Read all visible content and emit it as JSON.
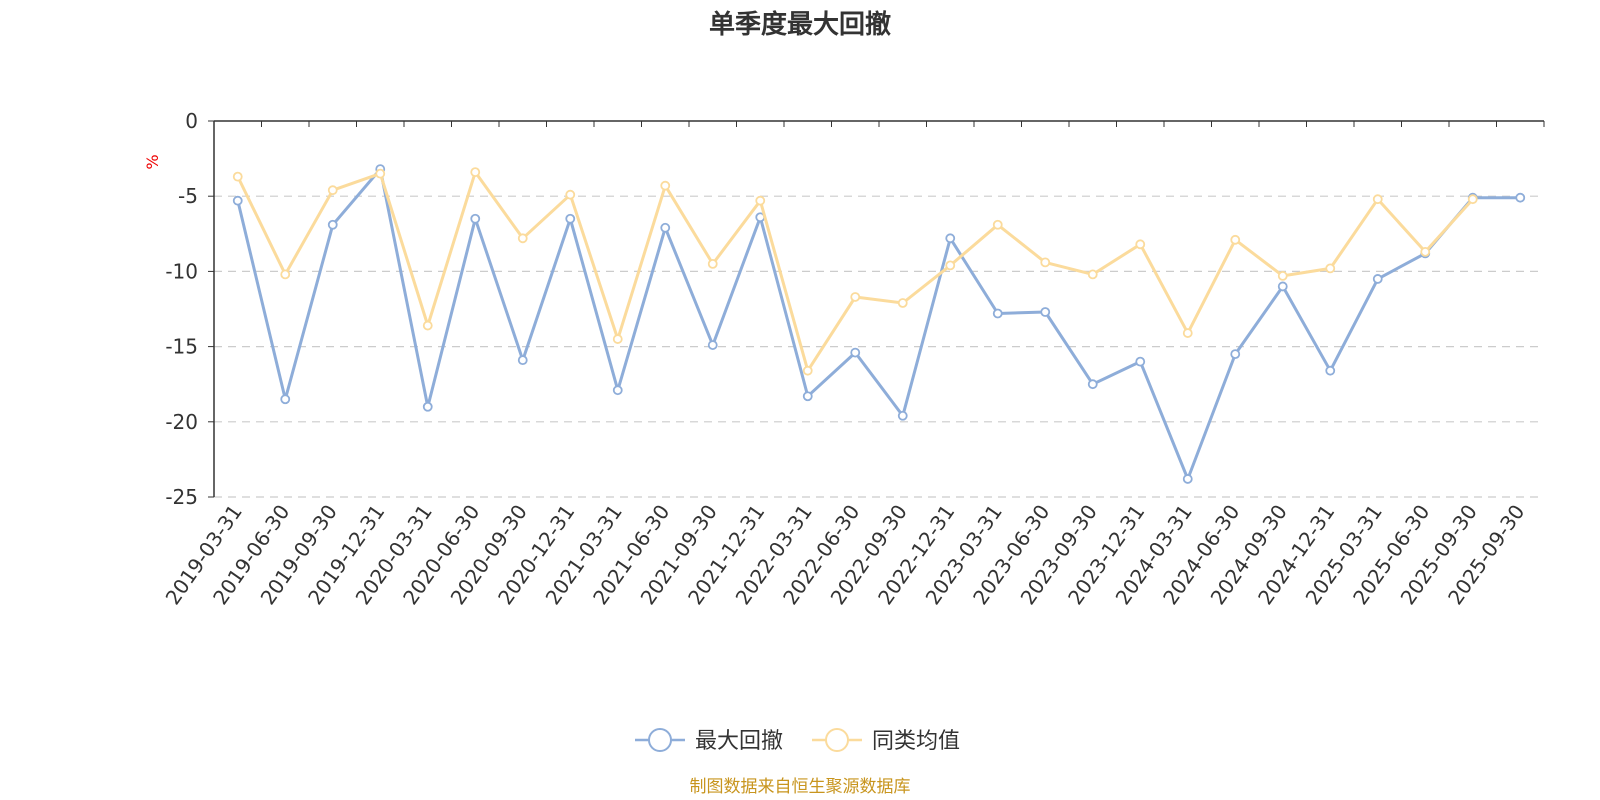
{
  "chart_data": {
    "type": "line",
    "title": "单季度最大回撤",
    "ylabel": "%",
    "ylim": [
      -25,
      0
    ],
    "yticks": [
      0,
      -5,
      -10,
      -15,
      -20,
      -25
    ],
    "grid": true,
    "legend_position": "bottom",
    "categories": [
      "2019-03-31",
      "2019-06-30",
      "2019-09-30",
      "2019-12-31",
      "2020-03-31",
      "2020-06-30",
      "2020-09-30",
      "2020-12-31",
      "2021-03-31",
      "2021-06-30",
      "2021-09-30",
      "2021-12-31",
      "2022-03-31",
      "2022-06-30",
      "2022-09-30",
      "2022-12-31",
      "2023-03-31",
      "2023-06-30",
      "2023-09-30",
      "2023-12-31",
      "2024-03-31",
      "2024-06-30",
      "2024-09-30",
      "2024-12-31",
      "2025-03-31",
      "2025-06-30",
      "2025-09-30",
      "2025-09-30"
    ],
    "series": [
      {
        "name": "最大回撤",
        "color": "#8eadd9",
        "values": [
          -5.3,
          -18.5,
          -6.9,
          -3.2,
          -19.0,
          -6.5,
          -15.9,
          -6.5,
          -17.9,
          -7.1,
          -14.9,
          -6.4,
          -18.3,
          -15.4,
          -19.6,
          -7.8,
          -12.8,
          -12.7,
          -17.5,
          -16.0,
          -23.8,
          -15.5,
          -11.0,
          -16.6,
          -10.5,
          -8.8,
          -5.1,
          -5.1
        ]
      },
      {
        "name": "同类均值",
        "color": "#fbdb9c",
        "values": [
          -3.7,
          -10.2,
          -4.6,
          -3.5,
          -13.6,
          -3.4,
          -7.8,
          -4.9,
          -14.5,
          -4.3,
          -9.5,
          -5.3,
          -16.6,
          -11.7,
          -12.1,
          -9.6,
          -6.9,
          -9.4,
          -10.2,
          -8.2,
          -14.1,
          -7.9,
          -10.3,
          -9.8,
          -5.2,
          -8.7,
          -5.2,
          null
        ]
      }
    ],
    "source": "制图数据来自恒生聚源数据库"
  }
}
